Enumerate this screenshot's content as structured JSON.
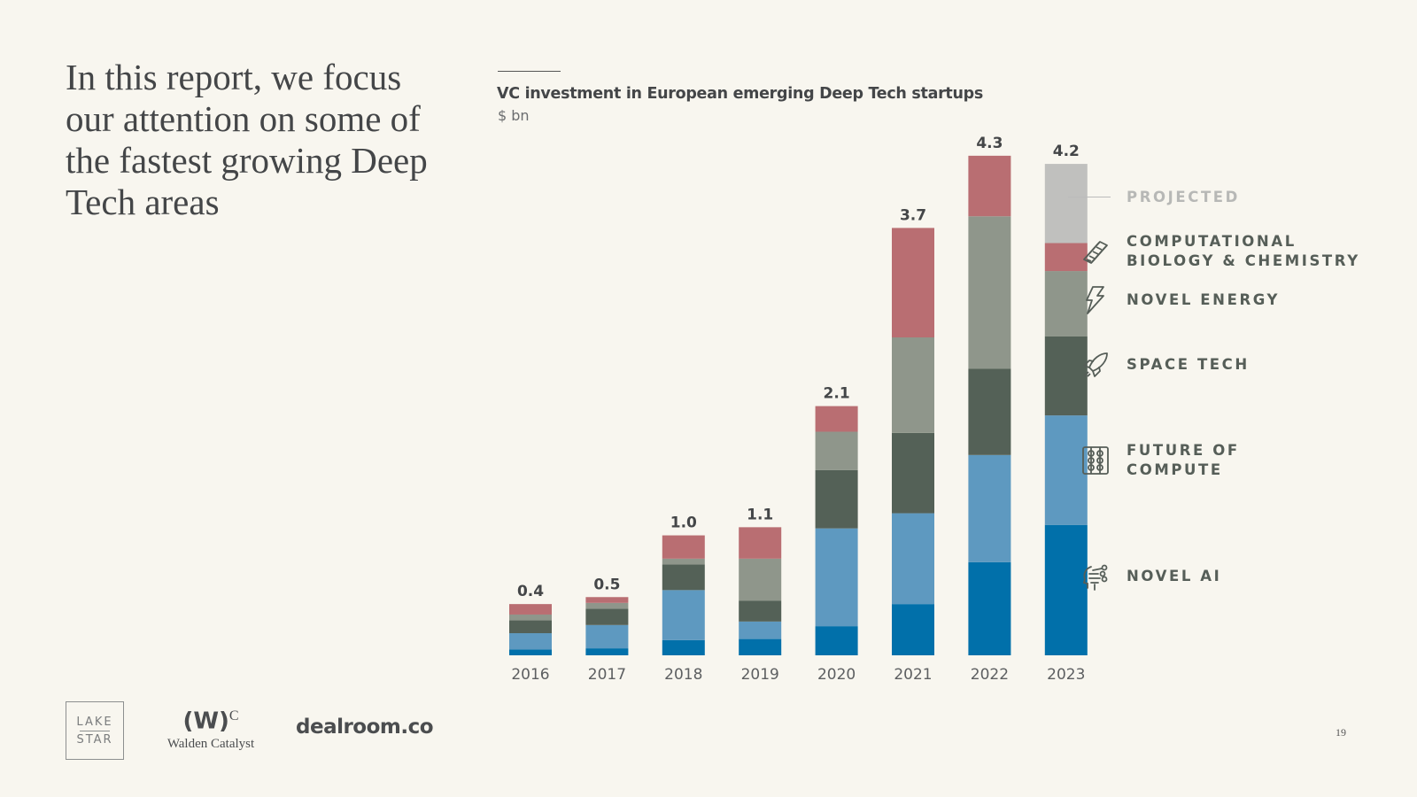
{
  "headline": "In this report, we focus our attention on some of the fastest growing Deep Tech areas",
  "page_number": "19",
  "logos": {
    "lake_star_top": "LAKE",
    "lake_star_bottom": "STAR",
    "walden_mark": "(W)",
    "walden_sup": "C",
    "walden_name": "Walden Catalyst",
    "dealroom": "dealroom.co"
  },
  "legend": [
    {
      "key": "projected",
      "label": "PROJECTED",
      "icon": "none",
      "color": "#c0c0be"
    },
    {
      "key": "bio",
      "label": "COMPUTATIONAL\nBIOLOGY & CHEMISTRY",
      "icon": "dna-icon",
      "color": "#b96e72"
    },
    {
      "key": "energy",
      "label": "NOVEL ENERGY",
      "icon": "lightning-bolt-icon",
      "color": "#8f968b"
    },
    {
      "key": "space",
      "label": "SPACE TECH",
      "icon": "rocket-icon",
      "color": "#546157"
    },
    {
      "key": "compute",
      "label": "FUTURE OF\nCOMPUTE",
      "icon": "abacus-icon",
      "color": "#5e99c0"
    },
    {
      "key": "ai",
      "label": "NOVEL AI",
      "icon": "ai-head-icon",
      "color": "#0170aa"
    }
  ],
  "chart_data": {
    "type": "bar",
    "stacked": true,
    "title": "VC investment in European emerging Deep Tech startups",
    "ylabel": "$ bn",
    "xlabel": "",
    "ylim": [
      0,
      4.3
    ],
    "grid": false,
    "legend_position": "right",
    "categories": [
      "2016",
      "2017",
      "2018",
      "2019",
      "2020",
      "2021",
      "2022",
      "2023"
    ],
    "totals": [
      "0.4",
      "0.5",
      "1.0",
      "1.1",
      "2.1",
      "3.7",
      "4.3",
      "4.2"
    ],
    "total_values": [
      0.43,
      0.51,
      1.04,
      1.1,
      2.14,
      3.67,
      4.3,
      4.22
    ],
    "series": [
      {
        "name": "Novel AI",
        "color": "#0170aa",
        "values": [
          0.05,
          0.06,
          0.13,
          0.14,
          0.25,
          0.44,
          0.8,
          1.12
        ]
      },
      {
        "name": "Future of Compute",
        "color": "#5e99c0",
        "values": [
          0.14,
          0.2,
          0.43,
          0.15,
          0.84,
          0.78,
          0.92,
          0.94
        ]
      },
      {
        "name": "Space Tech",
        "color": "#546157",
        "values": [
          0.11,
          0.14,
          0.22,
          0.18,
          0.5,
          0.69,
          0.74,
          0.68
        ]
      },
      {
        "name": "Novel Energy",
        "color": "#8f968b",
        "values": [
          0.05,
          0.05,
          0.05,
          0.36,
          0.33,
          0.82,
          1.31,
          0.56
        ]
      },
      {
        "name": "Computational Biology & Chemistry",
        "color": "#b96e72",
        "values": [
          0.09,
          0.05,
          0.2,
          0.27,
          0.22,
          0.94,
          0.52,
          0.24
        ]
      },
      {
        "name": "Projected",
        "color": "#c0c0be",
        "values": [
          0,
          0,
          0,
          0,
          0,
          0,
          0,
          0.68
        ]
      }
    ]
  }
}
